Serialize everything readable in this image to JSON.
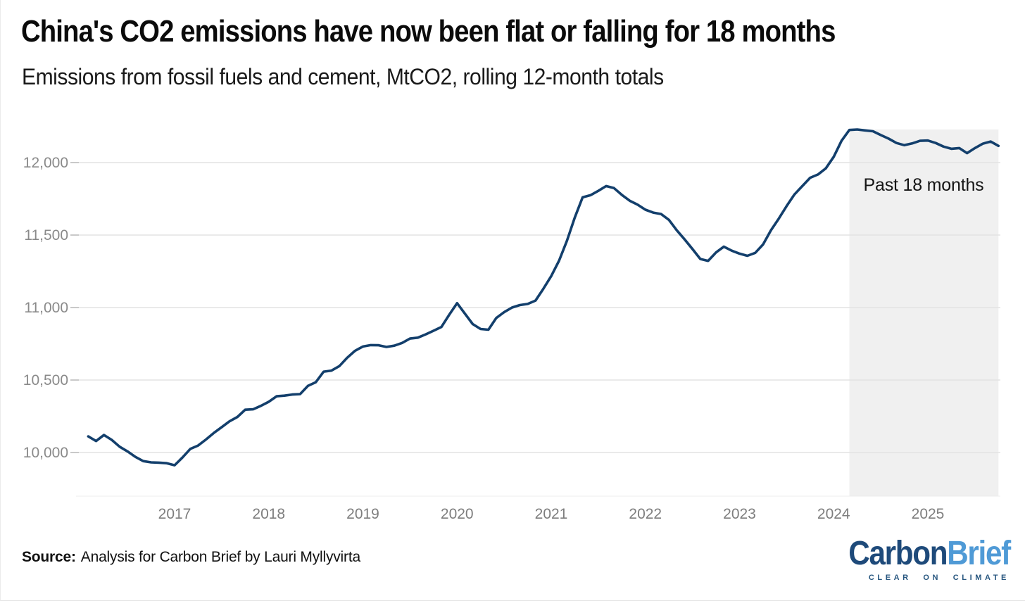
{
  "header": {
    "title": "China's CO2 emissions have now been flat or falling for 18 months",
    "subtitle": "Emissions from fossil fuels and cement, MtCO2, rolling 12-month totals"
  },
  "chart_data": {
    "type": "line",
    "title": "China's CO2 emissions have now been flat or falling for 18 months",
    "subtitle": "Emissions from fossil fuels and cement, MtCO2, rolling 12-month totals",
    "series_name": "China CO2 emissions, rolling 12-month total (MtCO2)",
    "unit": "MtCO2",
    "frequency": "monthly",
    "start_month": "2016-02",
    "end_month": "2025-10",
    "values": [
      10111,
      10079,
      10121,
      10087,
      10040,
      10008,
      9970,
      9941,
      9932,
      9930,
      9926,
      9912,
      9965,
      10025,
      10048,
      10090,
      10135,
      10175,
      10215,
      10245,
      10295,
      10298,
      10322,
      10350,
      10388,
      10392,
      10400,
      10403,
      10460,
      10485,
      10558,
      10565,
      10596,
      10654,
      10702,
      10731,
      10741,
      10740,
      10728,
      10737,
      10756,
      10786,
      10792,
      10815,
      10840,
      10866,
      10950,
      11030,
      10958,
      10886,
      10852,
      10847,
      10928,
      10968,
      11000,
      11017,
      11025,
      11048,
      11130,
      11217,
      11323,
      11460,
      11620,
      11760,
      11775,
      11805,
      11838,
      11824,
      11777,
      11737,
      11710,
      11675,
      11655,
      11645,
      11605,
      11533,
      11470,
      11404,
      11335,
      11322,
      11380,
      11420,
      11392,
      11372,
      11357,
      11377,
      11435,
      11533,
      11613,
      11700,
      11780,
      11838,
      11895,
      11918,
      11960,
      12040,
      12150,
      12225,
      12228,
      12222,
      12216,
      12190,
      12165,
      12135,
      12120,
      12132,
      12150,
      12152,
      12135,
      12110,
      12095,
      12100,
      12065,
      12100,
      12130,
      12145,
      12115
    ],
    "y_ticks": [
      10000,
      10500,
      11000,
      11500,
      12000
    ],
    "y_tick_labels": [
      "10,000",
      "10,500",
      "11,000",
      "11,500",
      "12,000"
    ],
    "x_tick_years": [
      2017,
      2018,
      2019,
      2020,
      2021,
      2022,
      2023,
      2024,
      2025
    ],
    "ylim": [
      9700,
      12320
    ],
    "grid": "horizontal",
    "legend": "none",
    "line_color": "#133f6c",
    "gridline_color": "#e3e3e3",
    "tick_color": "#c9c9c9",
    "axis_label_color": "#8a8a8a",
    "annotation": {
      "text": "Past 18 months",
      "region_start": "2024-03",
      "region_fill": "#f0f0f0"
    }
  },
  "footer": {
    "source_label": "Source:",
    "source_text": "Analysis for Carbon Brief by Lauri Myllyvirta"
  },
  "logo": {
    "carbon": "Carbon",
    "brief": "Brief",
    "tagline": "CLEAR ON CLIMATE",
    "carbon_color": "#1e4a7a",
    "brief_color": "#4f9ad6",
    "tagline_color": "#27567f"
  }
}
